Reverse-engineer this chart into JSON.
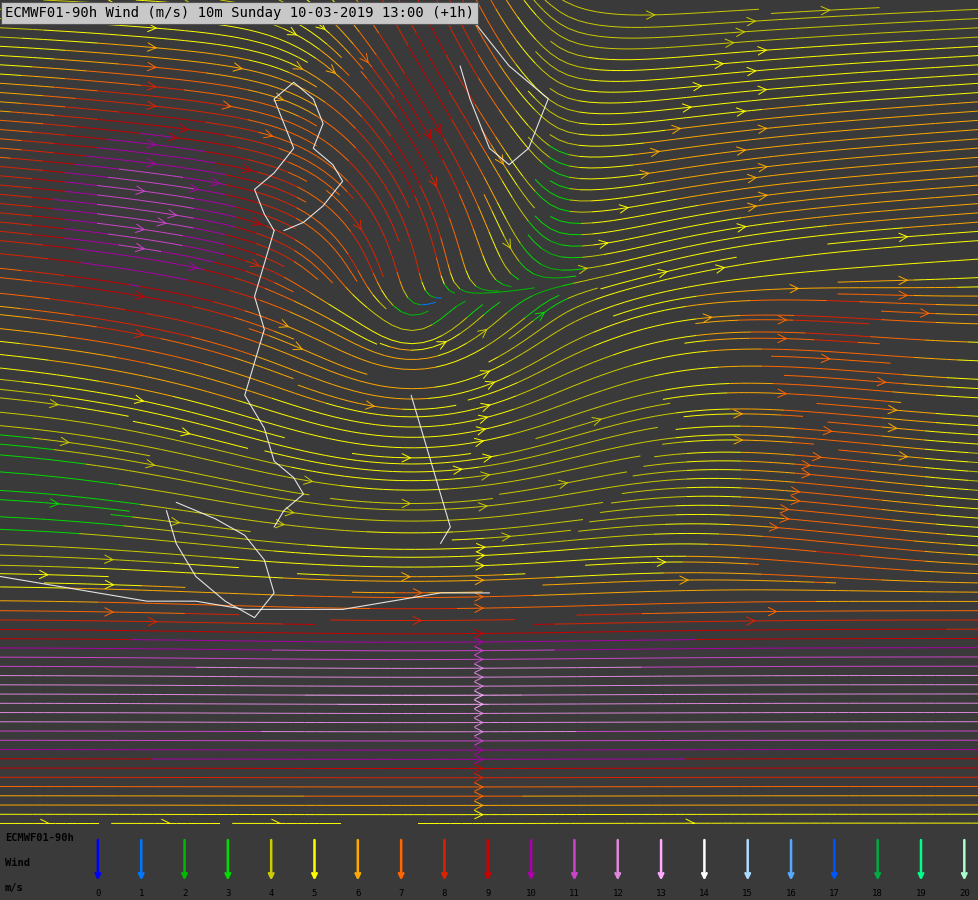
{
  "title": "ECMWF01-90h Wind (m/s) 10m Sunday 10-03-2019 13:00 (+1h)",
  "title_bg": "#c8c8c8",
  "title_color": "black",
  "title_fontsize": 10,
  "bg_color": "#3a3a3a",
  "fig_width": 9.79,
  "fig_height": 9.0,
  "legend_label1": "ECMWF01-90h",
  "legend_label2": "Wind",
  "legend_label3": "m/s",
  "legend_ticks": [
    0,
    1,
    2,
    3,
    4,
    5,
    6,
    7,
    8,
    9,
    10,
    11,
    12,
    13,
    14,
    15,
    16,
    17,
    18,
    19,
    20
  ],
  "legend_bg": "#aaaaaa",
  "speed_colors": [
    "#0000ff",
    "#0077ff",
    "#00bb00",
    "#00dd00",
    "#cccc00",
    "#ffff00",
    "#ffaa00",
    "#ff6600",
    "#dd2200",
    "#cc0000",
    "#aa00aa",
    "#cc44cc",
    "#dd88dd",
    "#ffaaff",
    "#ffffff",
    "#aaddff",
    "#55aaff",
    "#0055ff",
    "#00aa44",
    "#00ff88",
    "#aaffcc"
  ],
  "map_bg": "#2d2d2d",
  "streamline_density": 3.0,
  "arrow_size": 1.5
}
